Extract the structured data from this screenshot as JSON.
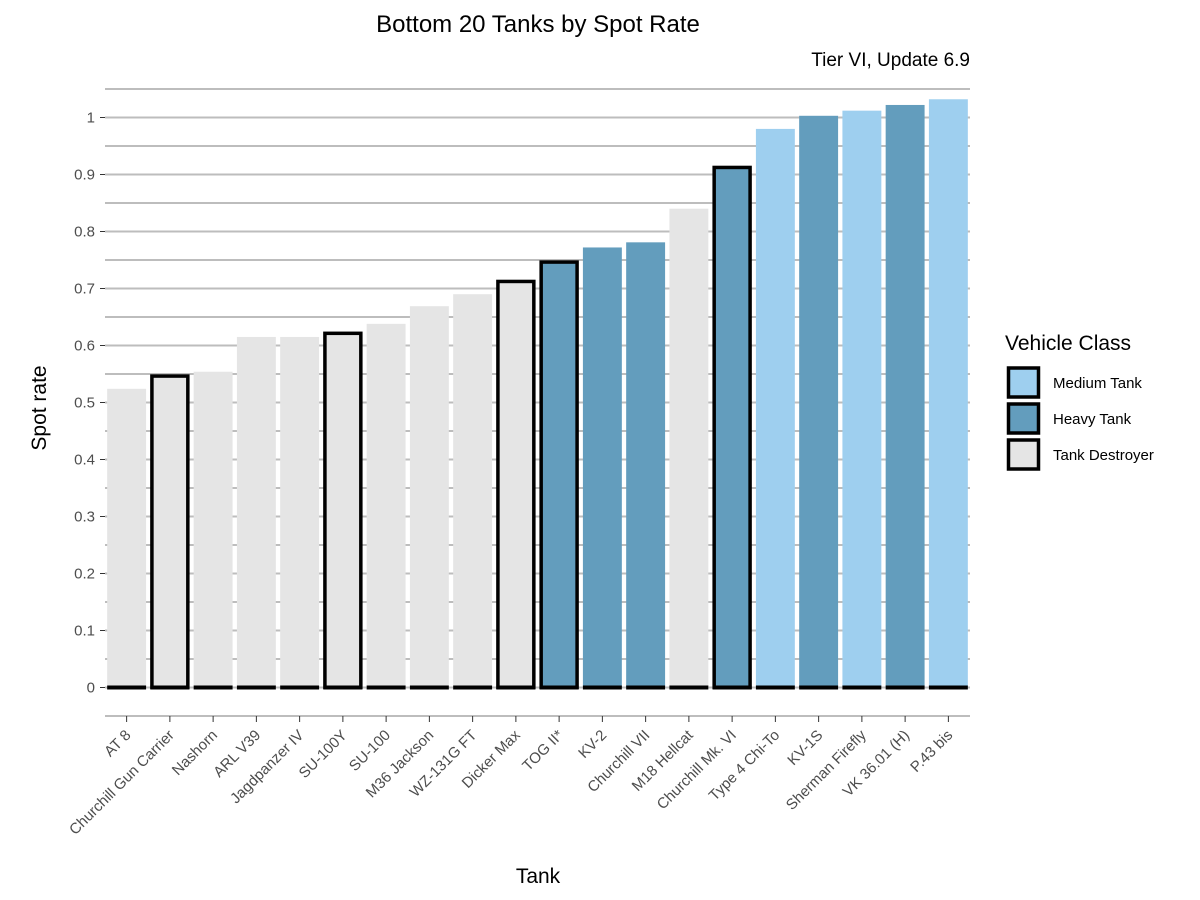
{
  "chart_data": {
    "type": "bar",
    "title": "Bottom 20 Tanks by Spot Rate",
    "subtitle": "Tier VI, Update 6.9",
    "xlabel": "Tank",
    "ylabel": "Spot rate",
    "ylim": [
      -0.05,
      1.05
    ],
    "yticks": [
      "0",
      "0.1",
      "0.2",
      "0.3",
      "0.4",
      "0.5",
      "0.6",
      "0.7",
      "0.8",
      "0.9",
      "1"
    ],
    "grid": "horizontal",
    "legend": {
      "title": "Vehicle Class",
      "position": "right",
      "entries": [
        {
          "label": "Medium Tank",
          "color": "#9ecfef"
        },
        {
          "label": "Heavy Tank",
          "color": "#639dbd"
        },
        {
          "label": "Tank Destroyer",
          "color": "#e5e5e5"
        }
      ]
    },
    "categories": [
      "AT 8",
      "Churchill Gun Carrier",
      "Nashorn",
      "ARL V39",
      "Jagdpanzer IV",
      "SU-100Y",
      "SU-100",
      "M36 Jackson",
      "WZ-131G FT",
      "Dicker Max",
      "TOG II*",
      "KV-2",
      "Churchill VII",
      "M18 Hellcat",
      "Churchill Mk. VI",
      "Type 4 Chi-To",
      "KV-1S",
      "Sherman Firefly",
      "VK 36.01 (H)",
      "P.43 bis"
    ],
    "values": [
      0.524,
      0.549,
      0.554,
      0.615,
      0.615,
      0.624,
      0.638,
      0.669,
      0.69,
      0.715,
      0.749,
      0.772,
      0.781,
      0.84,
      0.915,
      0.98,
      1.003,
      1.012,
      1.022,
      1.032
    ],
    "vehicle_class": [
      "Tank Destroyer",
      "Tank Destroyer",
      "Tank Destroyer",
      "Tank Destroyer",
      "Tank Destroyer",
      "Tank Destroyer",
      "Tank Destroyer",
      "Tank Destroyer",
      "Tank Destroyer",
      "Tank Destroyer",
      "Heavy Tank",
      "Heavy Tank",
      "Heavy Tank",
      "Tank Destroyer",
      "Heavy Tank",
      "Medium Tank",
      "Heavy Tank",
      "Medium Tank",
      "Heavy Tank",
      "Medium Tank"
    ],
    "outlined": [
      false,
      true,
      false,
      false,
      false,
      true,
      false,
      false,
      false,
      true,
      true,
      false,
      false,
      false,
      true,
      false,
      false,
      false,
      false,
      false
    ]
  }
}
